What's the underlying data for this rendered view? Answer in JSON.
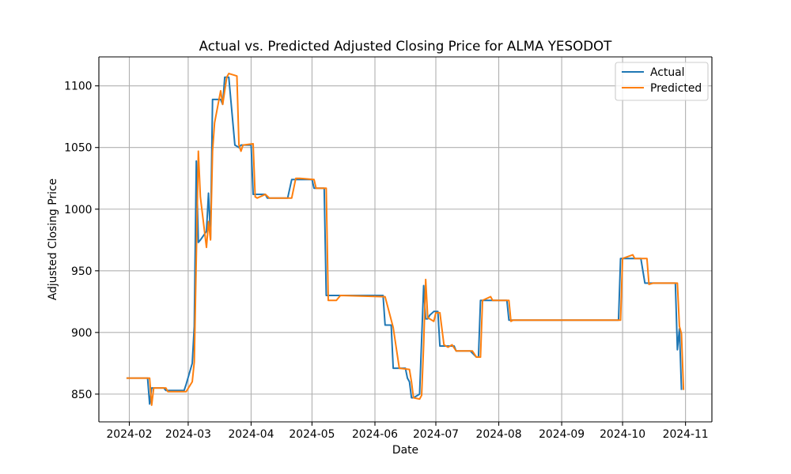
{
  "chart_data": {
    "type": "line",
    "title": "Actual vs. Predicted Adjusted Closing Price for ALMA YESODOT",
    "xlabel": "Date",
    "ylabel": "Adjusted Closing Price",
    "xlim": [
      "2024-01-17",
      "2024-11-14"
    ],
    "ylim": [
      827.5,
      1123.5
    ],
    "grid": true,
    "legend": {
      "position": "top-right"
    },
    "xticks": [
      {
        "date": "2024-02-01",
        "label": "2024-02"
      },
      {
        "date": "2024-03-01",
        "label": "2024-03"
      },
      {
        "date": "2024-04-01",
        "label": "2024-04"
      },
      {
        "date": "2024-05-01",
        "label": "2024-05"
      },
      {
        "date": "2024-06-01",
        "label": "2024-06"
      },
      {
        "date": "2024-07-01",
        "label": "2024-07"
      },
      {
        "date": "2024-08-01",
        "label": "2024-08"
      },
      {
        "date": "2024-09-01",
        "label": "2024-09"
      },
      {
        "date": "2024-10-01",
        "label": "2024-10"
      },
      {
        "date": "2024-11-01",
        "label": "2024-11"
      }
    ],
    "yticks": [
      850,
      900,
      950,
      1000,
      1050,
      1100
    ],
    "series": [
      {
        "name": "Actual",
        "color": "#1f77b4",
        "points": [
          [
            "2024-01-31",
            863
          ],
          [
            "2024-02-10",
            863
          ],
          [
            "2024-02-11",
            842
          ],
          [
            "2024-02-12",
            855
          ],
          [
            "2024-02-18",
            855
          ],
          [
            "2024-02-19",
            853
          ],
          [
            "2024-02-28",
            853
          ],
          [
            "2024-02-29",
            858
          ],
          [
            "2024-03-03",
            875
          ],
          [
            "2024-03-04",
            905
          ],
          [
            "2024-03-05",
            1039
          ],
          [
            "2024-03-06",
            973
          ],
          [
            "2024-03-07",
            975
          ],
          [
            "2024-03-10",
            982
          ],
          [
            "2024-03-11",
            1013
          ],
          [
            "2024-03-12",
            976
          ],
          [
            "2024-03-13",
            1089
          ],
          [
            "2024-03-17",
            1089
          ],
          [
            "2024-03-18",
            1085
          ],
          [
            "2024-03-19",
            1107
          ],
          [
            "2024-03-21",
            1107
          ],
          [
            "2024-03-24",
            1052
          ],
          [
            "2024-03-25",
            1051
          ],
          [
            "2024-03-26",
            1050
          ],
          [
            "2024-03-27",
            1052
          ],
          [
            "2024-04-01",
            1052
          ],
          [
            "2024-04-02",
            1012
          ],
          [
            "2024-04-08",
            1012
          ],
          [
            "2024-04-09",
            1009
          ],
          [
            "2024-04-19",
            1009
          ],
          [
            "2024-04-21",
            1024
          ],
          [
            "2024-05-01",
            1024
          ],
          [
            "2024-05-02",
            1017
          ],
          [
            "2024-05-07",
            1017
          ],
          [
            "2024-05-08",
            930
          ],
          [
            "2024-06-05",
            930
          ],
          [
            "2024-06-06",
            906
          ],
          [
            "2024-06-09",
            906
          ],
          [
            "2024-06-10",
            871
          ],
          [
            "2024-06-16",
            871
          ],
          [
            "2024-06-17",
            863
          ],
          [
            "2024-06-18",
            860
          ],
          [
            "2024-06-19",
            847
          ],
          [
            "2024-06-20",
            847
          ],
          [
            "2024-06-23",
            850
          ],
          [
            "2024-06-25",
            938
          ],
          [
            "2024-06-26",
            911
          ],
          [
            "2024-06-27",
            911
          ],
          [
            "2024-06-28",
            914
          ],
          [
            "2024-06-30",
            917
          ],
          [
            "2024-07-02",
            917
          ],
          [
            "2024-07-03",
            889
          ],
          [
            "2024-07-10",
            889
          ],
          [
            "2024-07-11",
            885
          ],
          [
            "2024-07-18",
            885
          ],
          [
            "2024-07-21",
            880
          ],
          [
            "2024-07-22",
            880
          ],
          [
            "2024-07-23",
            926
          ],
          [
            "2024-08-05",
            926
          ],
          [
            "2024-08-06",
            910
          ],
          [
            "2024-09-29",
            910
          ],
          [
            "2024-09-30",
            960
          ],
          [
            "2024-10-10",
            960
          ],
          [
            "2024-10-12",
            940
          ],
          [
            "2024-10-27",
            940
          ],
          [
            "2024-10-28",
            886
          ],
          [
            "2024-10-29",
            903
          ],
          [
            "2024-10-30",
            854
          ]
        ]
      },
      {
        "name": "Predicted",
        "color": "#ff7f0e",
        "points": [
          [
            "2024-01-31",
            863
          ],
          [
            "2024-02-11",
            863
          ],
          [
            "2024-02-12",
            841
          ],
          [
            "2024-02-13",
            855
          ],
          [
            "2024-02-19",
            855
          ],
          [
            "2024-02-20",
            852
          ],
          [
            "2024-02-29",
            852
          ],
          [
            "2024-03-03",
            860
          ],
          [
            "2024-03-04",
            876
          ],
          [
            "2024-03-06",
            1047
          ],
          [
            "2024-03-07",
            1010
          ],
          [
            "2024-03-10",
            969
          ],
          [
            "2024-03-11",
            990
          ],
          [
            "2024-03-12",
            975
          ],
          [
            "2024-03-13",
            1047
          ],
          [
            "2024-03-14",
            1070
          ],
          [
            "2024-03-17",
            1096
          ],
          [
            "2024-03-18",
            1085
          ],
          [
            "2024-03-20",
            1107
          ],
          [
            "2024-03-21",
            1110
          ],
          [
            "2024-03-25",
            1108
          ],
          [
            "2024-03-26",
            1052
          ],
          [
            "2024-03-27",
            1047
          ],
          [
            "2024-03-28",
            1052
          ],
          [
            "2024-04-02",
            1053
          ],
          [
            "2024-04-03",
            1010
          ],
          [
            "2024-04-04",
            1009
          ],
          [
            "2024-04-08",
            1012
          ],
          [
            "2024-04-10",
            1009
          ],
          [
            "2024-04-21",
            1009
          ],
          [
            "2024-04-23",
            1025
          ],
          [
            "2024-04-25",
            1025
          ],
          [
            "2024-05-02",
            1024
          ],
          [
            "2024-05-03",
            1017
          ],
          [
            "2024-05-08",
            1017
          ],
          [
            "2024-05-09",
            926
          ],
          [
            "2024-05-13",
            926
          ],
          [
            "2024-05-15",
            930
          ],
          [
            "2024-06-06",
            929
          ],
          [
            "2024-06-10",
            904
          ],
          [
            "2024-06-13",
            871
          ],
          [
            "2024-06-18",
            870
          ],
          [
            "2024-06-19",
            860
          ],
          [
            "2024-06-20",
            847
          ],
          [
            "2024-06-23",
            846
          ],
          [
            "2024-06-24",
            849
          ],
          [
            "2024-06-25",
            890
          ],
          [
            "2024-06-26",
            943
          ],
          [
            "2024-06-27",
            912
          ],
          [
            "2024-06-30",
            909
          ],
          [
            "2024-07-01",
            916
          ],
          [
            "2024-07-03",
            916
          ],
          [
            "2024-07-05",
            890
          ],
          [
            "2024-07-07",
            888
          ],
          [
            "2024-07-09",
            890
          ],
          [
            "2024-07-11",
            885
          ],
          [
            "2024-07-19",
            885
          ],
          [
            "2024-07-21",
            880
          ],
          [
            "2024-07-23",
            880
          ],
          [
            "2024-07-24",
            926
          ],
          [
            "2024-07-28",
            929
          ],
          [
            "2024-07-29",
            926
          ],
          [
            "2024-08-06",
            926
          ],
          [
            "2024-08-07",
            909
          ],
          [
            "2024-08-08",
            910
          ],
          [
            "2024-09-30",
            910
          ],
          [
            "2024-10-01",
            960
          ],
          [
            "2024-10-06",
            963
          ],
          [
            "2024-10-07",
            960
          ],
          [
            "2024-10-13",
            960
          ],
          [
            "2024-10-14",
            939
          ],
          [
            "2024-10-16",
            940
          ],
          [
            "2024-10-28",
            940
          ],
          [
            "2024-10-29",
            905
          ],
          [
            "2024-10-30",
            899
          ],
          [
            "2024-10-31",
            854
          ]
        ]
      }
    ]
  }
}
